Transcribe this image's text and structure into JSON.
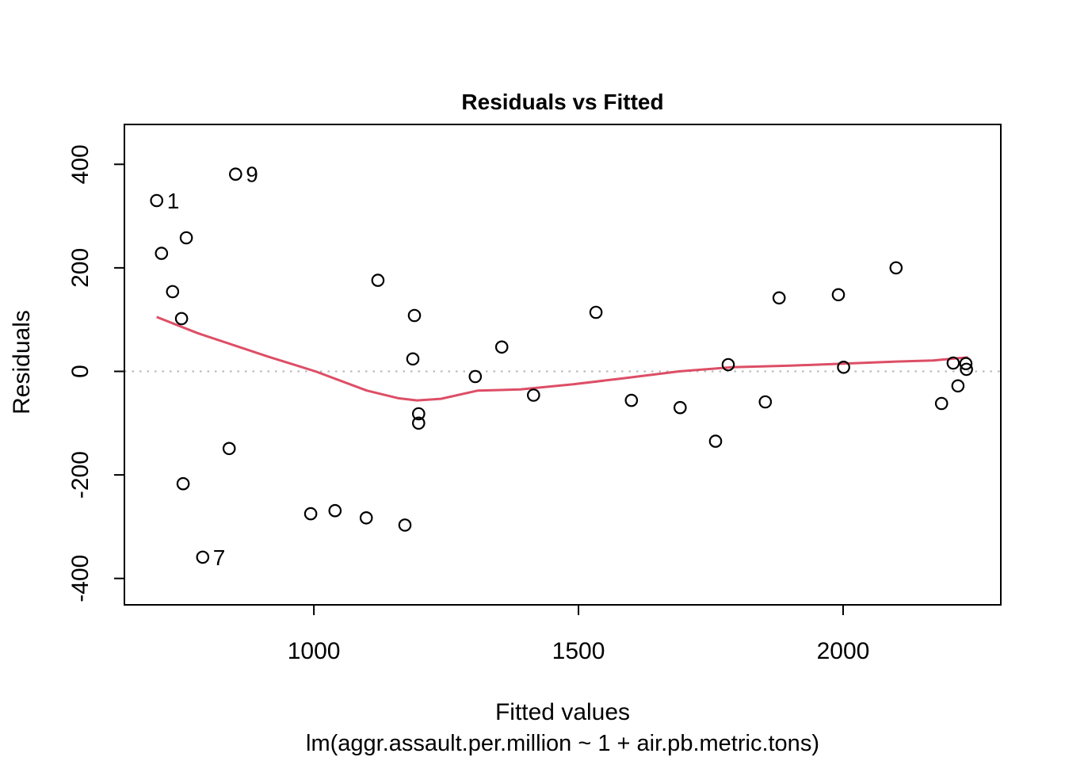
{
  "page": {
    "background": "#ffffff"
  },
  "chart": {
    "title": "Residuals vs Fitted",
    "x_label": "Fitted values",
    "y_label": "Residuals",
    "caption": "lm(aggr.assault.per.million ~ 1 + air.pb.metric.tons)"
  },
  "chart_data": {
    "type": "scatter",
    "title": "Residuals vs Fitted",
    "xlabel": "Fitted values",
    "ylabel": "Residuals",
    "caption": "lm(aggr.assault.per.million ~ 1 + air.pb.metric.tons)",
    "xlim": [
      642,
      2298
    ],
    "ylim": [
      -451,
      477
    ],
    "x_ticks": [
      "1000",
      "1500",
      "2000"
    ],
    "x_tick_values": [
      1000,
      1500,
      2000
    ],
    "y_ticks": [
      "-400",
      "-200",
      "0",
      "200",
      "400"
    ],
    "y_tick_values": [
      -400,
      -200,
      0,
      200,
      400
    ],
    "grid": false,
    "legend": null,
    "colors": {
      "points": "#000000",
      "smooth_line": "#DD4E66",
      "zero_line": "#B4B4B4",
      "box": "#000000",
      "text": "#000000"
    },
    "zero_line": {
      "y": 0,
      "style": "dotted"
    },
    "marker": "open-circle",
    "points": [
      {
        "x": 703,
        "y": 330,
        "label": "1"
      },
      {
        "x": 712,
        "y": 228
      },
      {
        "x": 733,
        "y": 154
      },
      {
        "x": 750,
        "y": 102
      },
      {
        "x": 753,
        "y": -217
      },
      {
        "x": 759,
        "y": 258
      },
      {
        "x": 790,
        "y": -359,
        "label": "7"
      },
      {
        "x": 840,
        "y": -149
      },
      {
        "x": 852,
        "y": 381,
        "label": "9"
      },
      {
        "x": 994,
        "y": -275
      },
      {
        "x": 1040,
        "y": -269
      },
      {
        "x": 1099,
        "y": -283
      },
      {
        "x": 1121,
        "y": 176
      },
      {
        "x": 1172,
        "y": -297
      },
      {
        "x": 1187,
        "y": 24
      },
      {
        "x": 1190,
        "y": 108
      },
      {
        "x": 1198,
        "y": -82
      },
      {
        "x": 1198,
        "y": -100
      },
      {
        "x": 1305,
        "y": -10
      },
      {
        "x": 1355,
        "y": 47
      },
      {
        "x": 1415,
        "y": -46
      },
      {
        "x": 1533,
        "y": 114
      },
      {
        "x": 1600,
        "y": -56
      },
      {
        "x": 1692,
        "y": -70
      },
      {
        "x": 1759,
        "y": -135
      },
      {
        "x": 1783,
        "y": 13
      },
      {
        "x": 1853,
        "y": -59
      },
      {
        "x": 1879,
        "y": 142
      },
      {
        "x": 1991,
        "y": 148
      },
      {
        "x": 2001,
        "y": 8
      },
      {
        "x": 2100,
        "y": 200
      },
      {
        "x": 2186,
        "y": -62
      },
      {
        "x": 2208,
        "y": 16
      },
      {
        "x": 2217,
        "y": -28
      },
      {
        "x": 2232,
        "y": 15
      },
      {
        "x": 2233,
        "y": 4
      }
    ],
    "smooth_line": {
      "name": "lowess-smooth",
      "xy": [
        [
          703,
          105
        ],
        [
          780,
          74
        ],
        [
          915,
          28
        ],
        [
          1003,
          0
        ],
        [
          1100,
          -37
        ],
        [
          1160,
          -52
        ],
        [
          1195,
          -56
        ],
        [
          1240,
          -53
        ],
        [
          1310,
          -37
        ],
        [
          1390,
          -35
        ],
        [
          1490,
          -25
        ],
        [
          1580,
          -14
        ],
        [
          1690,
          0
        ],
        [
          1790,
          8
        ],
        [
          1900,
          11
        ],
        [
          2000,
          15
        ],
        [
          2100,
          19
        ],
        [
          2170,
          21
        ],
        [
          2210,
          25
        ],
        [
          2236,
          27
        ]
      ]
    }
  }
}
